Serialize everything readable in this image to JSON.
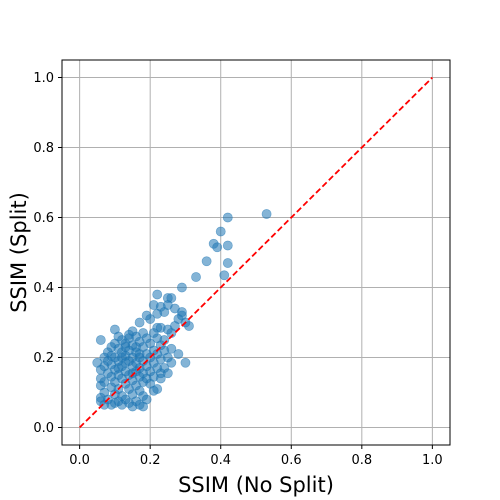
{
  "chart_data": {
    "type": "scatter",
    "title": "",
    "xlabel": "SSIM (No Split)",
    "ylabel": "SSIM (Split)",
    "xlim": [
      -0.05,
      1.05
    ],
    "ylim": [
      -0.05,
      1.05
    ],
    "xticks": [
      "0.0",
      "0.2",
      "0.4",
      "0.6",
      "0.8",
      "1.0"
    ],
    "yticks": [
      "0.0",
      "0.2",
      "0.4",
      "0.6",
      "0.8",
      "1.0"
    ],
    "grid": true,
    "legend": "none",
    "point_color": "#1f77b4",
    "point_opacity": 0.55,
    "reference_line": {
      "style": "dashed",
      "color": "#ff0000",
      "from": [
        0,
        0
      ],
      "to": [
        1,
        1
      ]
    },
    "series": [
      {
        "points": [
          [
            0.53,
            0.61
          ],
          [
            0.42,
            0.6
          ],
          [
            0.4,
            0.56
          ],
          [
            0.38,
            0.525
          ],
          [
            0.39,
            0.515
          ],
          [
            0.42,
            0.52
          ],
          [
            0.36,
            0.475
          ],
          [
            0.42,
            0.47
          ],
          [
            0.41,
            0.435
          ],
          [
            0.33,
            0.43
          ],
          [
            0.29,
            0.4
          ],
          [
            0.22,
            0.38
          ],
          [
            0.25,
            0.37
          ],
          [
            0.26,
            0.37
          ],
          [
            0.21,
            0.35
          ],
          [
            0.25,
            0.35
          ],
          [
            0.23,
            0.345
          ],
          [
            0.27,
            0.34
          ],
          [
            0.24,
            0.33
          ],
          [
            0.29,
            0.33
          ],
          [
            0.22,
            0.325
          ],
          [
            0.29,
            0.32
          ],
          [
            0.28,
            0.31
          ],
          [
            0.19,
            0.32
          ],
          [
            0.2,
            0.31
          ],
          [
            0.3,
            0.3
          ],
          [
            0.17,
            0.3
          ],
          [
            0.31,
            0.29
          ],
          [
            0.22,
            0.285
          ],
          [
            0.23,
            0.285
          ],
          [
            0.27,
            0.29
          ],
          [
            0.25,
            0.28
          ],
          [
            0.26,
            0.27
          ],
          [
            0.1,
            0.28
          ],
          [
            0.15,
            0.275
          ],
          [
            0.18,
            0.27
          ],
          [
            0.21,
            0.27
          ],
          [
            0.06,
            0.25
          ],
          [
            0.12,
            0.25
          ],
          [
            0.14,
            0.255
          ],
          [
            0.16,
            0.26
          ],
          [
            0.19,
            0.255
          ],
          [
            0.22,
            0.255
          ],
          [
            0.24,
            0.25
          ],
          [
            0.1,
            0.24
          ],
          [
            0.13,
            0.24
          ],
          [
            0.17,
            0.245
          ],
          [
            0.2,
            0.24
          ],
          [
            0.23,
            0.235
          ],
          [
            0.09,
            0.23
          ],
          [
            0.11,
            0.225
          ],
          [
            0.15,
            0.235
          ],
          [
            0.18,
            0.23
          ],
          [
            0.21,
            0.22
          ],
          [
            0.24,
            0.22
          ],
          [
            0.26,
            0.225
          ],
          [
            0.08,
            0.215
          ],
          [
            0.12,
            0.215
          ],
          [
            0.14,
            0.22
          ],
          [
            0.16,
            0.215
          ],
          [
            0.19,
            0.21
          ],
          [
            0.22,
            0.21
          ],
          [
            0.07,
            0.2
          ],
          [
            0.1,
            0.2
          ],
          [
            0.13,
            0.205
          ],
          [
            0.15,
            0.2
          ],
          [
            0.17,
            0.2
          ],
          [
            0.2,
            0.2
          ],
          [
            0.23,
            0.195
          ],
          [
            0.25,
            0.2
          ],
          [
            0.05,
            0.185
          ],
          [
            0.08,
            0.19
          ],
          [
            0.11,
            0.19
          ],
          [
            0.14,
            0.19
          ],
          [
            0.16,
            0.185
          ],
          [
            0.18,
            0.19
          ],
          [
            0.21,
            0.185
          ],
          [
            0.26,
            0.185
          ],
          [
            0.3,
            0.185
          ],
          [
            0.07,
            0.175
          ],
          [
            0.09,
            0.18
          ],
          [
            0.12,
            0.175
          ],
          [
            0.15,
            0.175
          ],
          [
            0.17,
            0.17
          ],
          [
            0.19,
            0.175
          ],
          [
            0.22,
            0.17
          ],
          [
            0.24,
            0.17
          ],
          [
            0.06,
            0.165
          ],
          [
            0.1,
            0.165
          ],
          [
            0.13,
            0.16
          ],
          [
            0.16,
            0.16
          ],
          [
            0.18,
            0.155
          ],
          [
            0.2,
            0.16
          ],
          [
            0.23,
            0.155
          ],
          [
            0.08,
            0.155
          ],
          [
            0.11,
            0.15
          ],
          [
            0.14,
            0.15
          ],
          [
            0.17,
            0.145
          ],
          [
            0.19,
            0.14
          ],
          [
            0.21,
            0.145
          ],
          [
            0.06,
            0.14
          ],
          [
            0.09,
            0.145
          ],
          [
            0.12,
            0.14
          ],
          [
            0.15,
            0.135
          ],
          [
            0.18,
            0.13
          ],
          [
            0.07,
            0.13
          ],
          [
            0.1,
            0.13
          ],
          [
            0.13,
            0.125
          ],
          [
            0.16,
            0.12
          ],
          [
            0.2,
            0.125
          ],
          [
            0.06,
            0.12
          ],
          [
            0.09,
            0.115
          ],
          [
            0.11,
            0.11
          ],
          [
            0.14,
            0.11
          ],
          [
            0.17,
            0.105
          ],
          [
            0.22,
            0.11
          ],
          [
            0.07,
            0.1
          ],
          [
            0.1,
            0.095
          ],
          [
            0.12,
            0.09
          ],
          [
            0.15,
            0.095
          ],
          [
            0.18,
            0.09
          ],
          [
            0.06,
            0.085
          ],
          [
            0.08,
            0.08
          ],
          [
            0.11,
            0.075
          ],
          [
            0.13,
            0.08
          ],
          [
            0.16,
            0.075
          ],
          [
            0.19,
            0.08
          ],
          [
            0.07,
            0.065
          ],
          [
            0.09,
            0.065
          ],
          [
            0.12,
            0.065
          ],
          [
            0.14,
            0.07
          ],
          [
            0.17,
            0.065
          ],
          [
            0.06,
            0.075
          ],
          [
            0.1,
            0.07
          ],
          [
            0.15,
            0.06
          ],
          [
            0.18,
            0.06
          ],
          [
            0.21,
            0.105
          ],
          [
            0.23,
            0.14
          ],
          [
            0.25,
            0.155
          ],
          [
            0.28,
            0.21
          ],
          [
            0.13,
            0.23
          ],
          [
            0.11,
            0.26
          ],
          [
            0.14,
            0.265
          ],
          [
            0.16,
            0.23
          ],
          [
            0.12,
            0.2
          ],
          [
            0.09,
            0.205
          ],
          [
            0.11,
            0.17
          ],
          [
            0.13,
            0.185
          ],
          [
            0.15,
            0.155
          ],
          [
            0.17,
            0.21
          ]
        ]
      }
    ]
  }
}
